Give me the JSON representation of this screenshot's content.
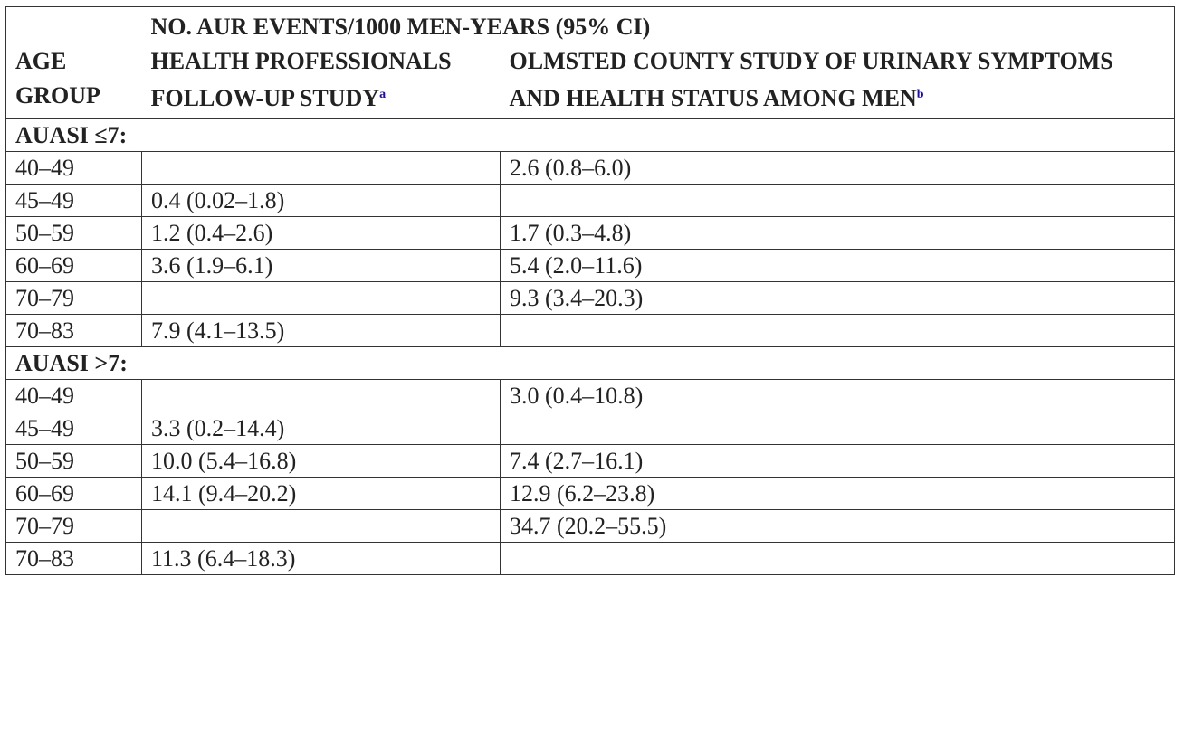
{
  "header": {
    "top": "NO. AUR EVENTS/1000 MEN-YEARS (95% CI)",
    "age_group": "AGE GROUP",
    "col_hpfs": "HEALTH PROFESSIONALS FOLLOW-UP STUDY",
    "col_hpfs_note": "a",
    "col_olmsted": "OLMSTED COUNTY STUDY OF URINARY SYMPTOMS AND HEALTH STATUS AMONG MEN",
    "col_olmsted_note": "b"
  },
  "sections": [
    {
      "label": "AUASI ≤7:",
      "rows": [
        {
          "age": "40–49",
          "hpfs": "",
          "olmsted": "2.6 (0.8–6.0)"
        },
        {
          "age": "45–49",
          "hpfs": "0.4 (0.02–1.8)",
          "olmsted": ""
        },
        {
          "age": "50–59",
          "hpfs": "1.2 (0.4–2.6)",
          "olmsted": "1.7 (0.3–4.8)"
        },
        {
          "age": "60–69",
          "hpfs": "3.6 (1.9–6.1)",
          "olmsted": "5.4 (2.0–11.6)"
        },
        {
          "age": "70–79",
          "hpfs": "",
          "olmsted": "9.3 (3.4–20.3)"
        },
        {
          "age": "70–83",
          "hpfs": "7.9 (4.1–13.5)",
          "olmsted": ""
        }
      ]
    },
    {
      "label": "AUASI >7:",
      "rows": [
        {
          "age": "40–49",
          "hpfs": "",
          "olmsted": "3.0 (0.4–10.8)"
        },
        {
          "age": "45–49",
          "hpfs": "3.3 (0.2–14.4)",
          "olmsted": ""
        },
        {
          "age": "50–59",
          "hpfs": "10.0 (5.4–16.8)",
          "olmsted": "7.4 (2.7–16.1)"
        },
        {
          "age": "60–69",
          "hpfs": "14.1 (9.4–20.2)",
          "olmsted": "12.9 (6.2–23.8)"
        },
        {
          "age": "70–79",
          "hpfs": "",
          "olmsted": "34.7 (20.2–55.5)"
        },
        {
          "age": "70–83",
          "hpfs": "11.3 (6.4–18.3)",
          "olmsted": ""
        }
      ]
    }
  ]
}
